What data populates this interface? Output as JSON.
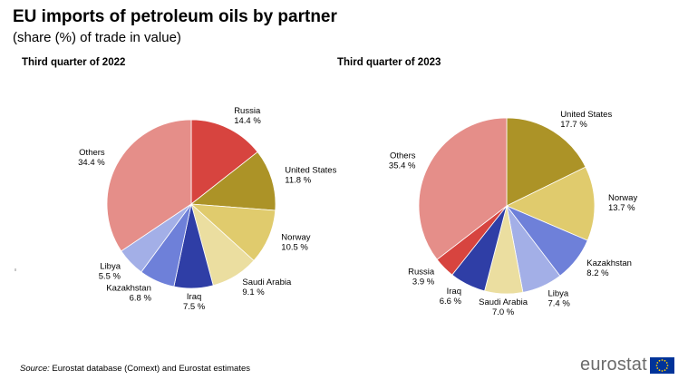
{
  "title": "EU imports of petroleum oils by partner",
  "subtitle": "(share (%) of trade in value)",
  "source": {
    "label": "Source:",
    "text": "Eurostat database (Comext) and Eurostat estimates"
  },
  "brand": {
    "name": "eurostat",
    "flag_color": "#003399",
    "star_color": "#FFCC00",
    "text_color": "#6b6b6b"
  },
  "chart_data": [
    {
      "type": "pie",
      "title": "Third quarter of 2022",
      "start_angle_deg": 0,
      "direction": "clockwise",
      "slices": [
        {
          "label": "Russia",
          "value": 14.4,
          "value_label": "14.4 %",
          "color": "#d7443f"
        },
        {
          "label": "United States",
          "value": 11.8,
          "value_label": "11.8 %",
          "color": "#ac9327"
        },
        {
          "label": "Norway",
          "value": 10.5,
          "value_label": "10.5 %",
          "color": "#e0cb6d"
        },
        {
          "label": "Saudi Arabia",
          "value": 9.1,
          "value_label": "9.1 %",
          "color": "#ebdea0"
        },
        {
          "label": "Iraq",
          "value": 7.5,
          "value_label": "7.5 %",
          "color": "#2f3ea6"
        },
        {
          "label": "Kazakhstan",
          "value": 6.8,
          "value_label": "6.8 %",
          "color": "#6e80d9"
        },
        {
          "label": "Libya",
          "value": 5.5,
          "value_label": "5.5 %",
          "color": "#a3afe7"
        },
        {
          "label": "Others",
          "value": 34.4,
          "value_label": "34.4 %",
          "color": "#e58e89"
        }
      ]
    },
    {
      "type": "pie",
      "title": "Third quarter of 2023",
      "start_angle_deg": 0,
      "direction": "clockwise",
      "slices": [
        {
          "label": "United States",
          "value": 17.7,
          "value_label": "17.7 %",
          "color": "#ac9327"
        },
        {
          "label": "Norway",
          "value": 13.7,
          "value_label": "13.7 %",
          "color": "#e0cb6d"
        },
        {
          "label": "Kazakhstan",
          "value": 8.2,
          "value_label": "8.2 %",
          "color": "#6e80d9"
        },
        {
          "label": "Libya",
          "value": 7.4,
          "value_label": "7.4 %",
          "color": "#a3afe7"
        },
        {
          "label": "Saudi Arabia",
          "value": 7.0,
          "value_label": "7.0 %",
          "color": "#ebdea0"
        },
        {
          "label": "Iraq",
          "value": 6.6,
          "value_label": "6.6 %",
          "color": "#2f3ea6"
        },
        {
          "label": "Russia",
          "value": 3.9,
          "value_label": "3.9 %",
          "color": "#d7443f"
        },
        {
          "label": "Others",
          "value": 35.4,
          "value_label": "35.4 %",
          "color": "#e58e89"
        }
      ]
    }
  ]
}
